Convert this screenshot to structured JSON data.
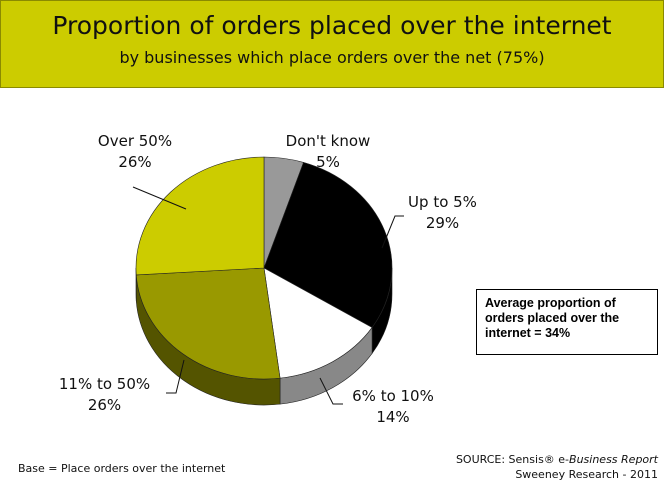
{
  "header": {
    "title": "Proportion of orders placed over the internet",
    "subtitle": "by businesses which place orders over the net (75%)"
  },
  "chart_data": {
    "type": "pie",
    "title": "Proportion of orders placed over the internet",
    "subtitle": "by businesses which place orders over the net (75%)",
    "slices": [
      {
        "name": "Don't know",
        "value": 5,
        "value_label": "5%",
        "color": "#999999"
      },
      {
        "name": "Up to 5%",
        "value": 29,
        "value_label": "29%",
        "color": "#000000"
      },
      {
        "name": "6% to 10%",
        "value": 14,
        "value_label": "14%",
        "color": "#ffffff"
      },
      {
        "name": "11% to 50%",
        "value": 26,
        "value_label": "26%",
        "color": "#999900"
      },
      {
        "name": "Over 50%",
        "value": 26,
        "value_label": "26%",
        "color": "#cccc00"
      }
    ],
    "start": "12 o'clock",
    "direction": "clockwise",
    "style": "3d"
  },
  "callout": {
    "line1": "Average proportion of",
    "line2": "orders placed over the",
    "line3": "internet = 34%"
  },
  "footer": {
    "base": "Base = Place orders over the internet",
    "source_prefix": "SOURCE: Sensis® e-",
    "source_report": "Business Report",
    "source_line2": "Sweeney Research - 2011"
  }
}
